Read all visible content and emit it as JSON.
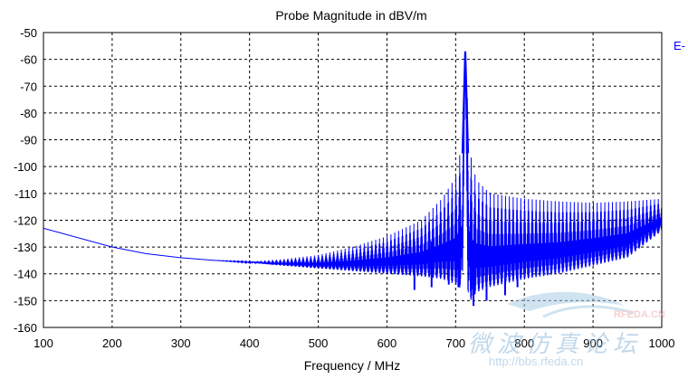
{
  "chart_data": {
    "type": "line",
    "title": "Probe Magnitude in dBV/m",
    "xlabel": "Frequency / MHz",
    "ylabel": "",
    "xlim": [
      100,
      1000
    ],
    "ylim": [
      -160,
      -50
    ],
    "x_ticks": [
      "100",
      "200",
      "300",
      "400",
      "500",
      "600",
      "700",
      "800",
      "900",
      "1000"
    ],
    "y_ticks": [
      "-50",
      "-60",
      "-70",
      "-80",
      "-90",
      "-100",
      "-110",
      "-120",
      "-130",
      "-140",
      "-150",
      "-160"
    ],
    "grid": true,
    "legend_position": "right",
    "series": [
      {
        "name": "E-",
        "color": "#0000ff",
        "envelope_x": [
          100,
          150,
          200,
          250,
          300,
          350,
          400,
          450,
          500,
          550,
          600,
          650,
          680,
          700,
          710,
          714,
          718,
          722,
          730,
          750,
          800,
          850,
          900,
          950,
          1000
        ],
        "envelope_upper": [
          -123,
          -126.5,
          -130,
          -132.5,
          -134,
          -135,
          -135.5,
          -134.5,
          -133,
          -130,
          -126,
          -120,
          -112,
          -104,
          -90,
          -57,
          -80,
          -96,
          -105,
          -110,
          -112,
          -113,
          -113.5,
          -113,
          -112
        ],
        "envelope_lower": [
          -123,
          -126.5,
          -130,
          -132.5,
          -134,
          -135,
          -135.8,
          -137,
          -138,
          -139,
          -140,
          -141,
          -142,
          -144,
          -146,
          -57,
          -152,
          -150,
          -147,
          -145,
          -142,
          -140,
          -137,
          -134,
          -124
        ]
      }
    ],
    "peak": {
      "x": 714,
      "y": -57
    },
    "dips": [
      {
        "x": 640,
        "y": -146
      },
      {
        "x": 665,
        "y": -145
      },
      {
        "x": 690,
        "y": -144
      },
      {
        "x": 704,
        "y": -145
      },
      {
        "x": 726,
        "y": -152
      },
      {
        "x": 745,
        "y": -150
      },
      {
        "x": 772,
        "y": -148
      },
      {
        "x": 790,
        "y": -145
      }
    ]
  },
  "watermark": {
    "logo_text": "RFEDA.CN",
    "chinese_text": "微波仿真论坛",
    "url_text": "http://bbs.rfeda.cn"
  }
}
